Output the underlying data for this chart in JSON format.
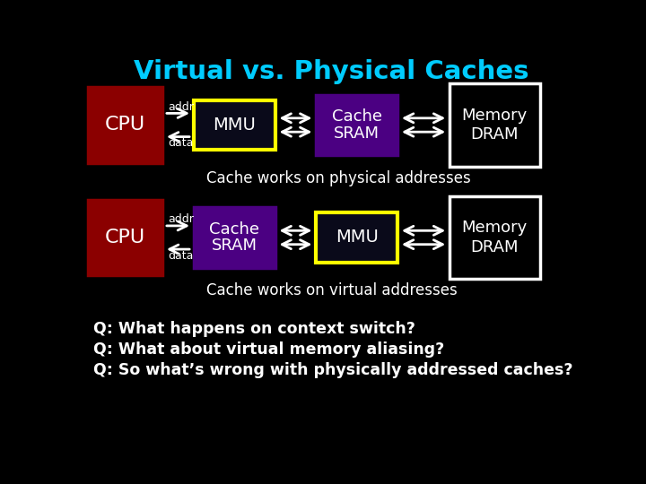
{
  "title": "Virtual vs. Physical Caches",
  "title_color": "#00CCFF",
  "bg_color": "#000000",
  "white": "#FFFFFF",
  "cpu_color": "#8B0000",
  "mmu_border_color": "#FFFF00",
  "mmu_fill_color": "#0a0a1a",
  "cache_color": "#4B0082",
  "memory_color": "#000000",
  "memory_border_color": "#FFFFFF",
  "row1": {
    "cpu_label": "CPU",
    "mmu_label": "MMU",
    "cache_label_top": "Cache",
    "cache_label_bot": "SRAM",
    "memory_label_top": "Memory",
    "memory_label_bot": "DRAM",
    "caption": "Cache works on physical addresses",
    "addr_label": "addr",
    "data_label": "data"
  },
  "row2": {
    "cpu_label": "CPU",
    "cache_label_top": "Cache",
    "cache_label_bot": "SRAM",
    "mmu_label": "MMU",
    "memory_label_top": "Memory",
    "memory_label_bot": "DRAM",
    "caption": "Cache works on virtual addresses",
    "addr_label": "addr",
    "data_label": "data"
  },
  "q1": "Q: What happens on context switch?",
  "q2": "Q: What about virtual memory aliasing?",
  "q3": "Q: So what’s wrong with physically addressed caches?"
}
